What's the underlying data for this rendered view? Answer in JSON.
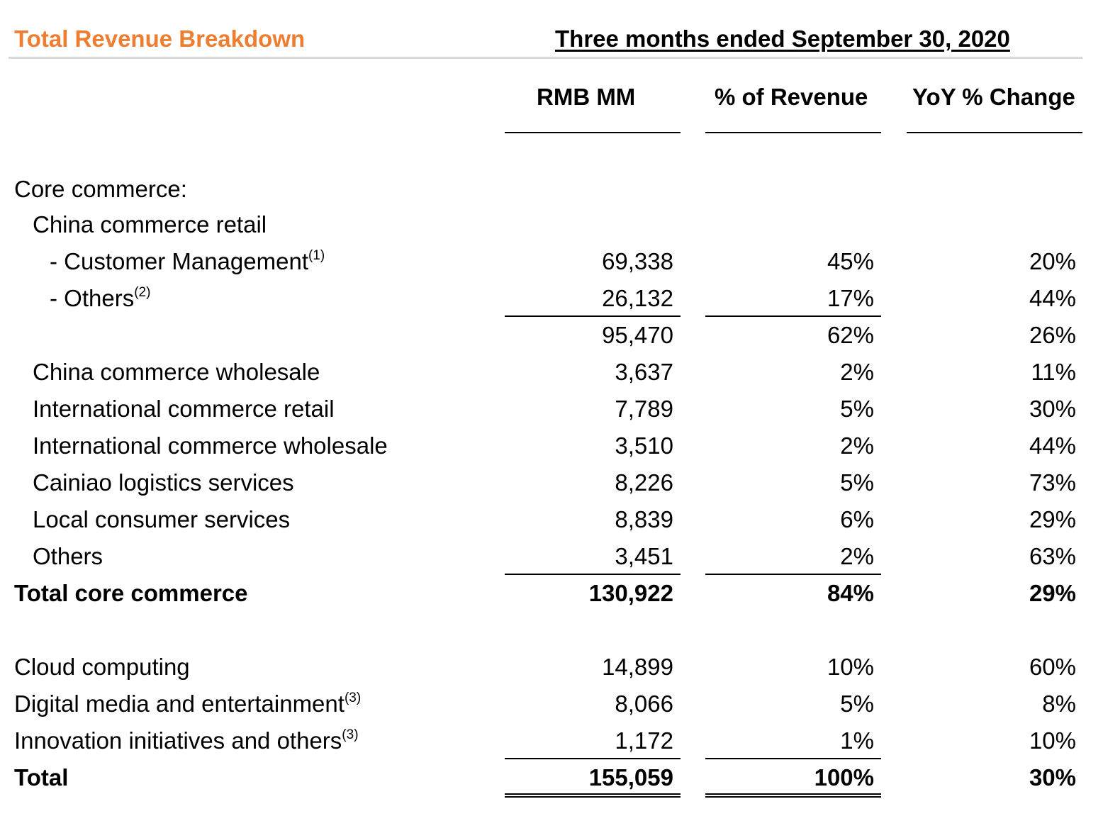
{
  "header": {
    "title": "Total Revenue Breakdown",
    "period": "Three months ended September 30, 2020"
  },
  "columns": {
    "rmb": "RMB MM",
    "pct": "% of Revenue",
    "yoy": "YoY % Change"
  },
  "colors": {
    "title": "#ED7D31"
  },
  "sections": {
    "core_label": "Core commerce:",
    "china_retail_label": "China commerce retail"
  },
  "rows": [
    {
      "label": "- Customer Management",
      "note": "(1)",
      "rmb": "69,338",
      "pct": "45%",
      "yoy": "20%"
    },
    {
      "label": "- Others",
      "note": "(2)",
      "rmb": "26,132",
      "pct": "17%",
      "yoy": "44%"
    },
    {
      "label": "",
      "note": "",
      "rmb": "95,470",
      "pct": "62%",
      "yoy": "26%"
    },
    {
      "label": "China commerce wholesale",
      "note": "",
      "rmb": "3,637",
      "pct": "2%",
      "yoy": "11%"
    },
    {
      "label": "International commerce retail",
      "note": "",
      "rmb": "7,789",
      "pct": "5%",
      "yoy": "30%"
    },
    {
      "label": "International commerce wholesale",
      "note": "",
      "rmb": "3,510",
      "pct": "2%",
      "yoy": "44%"
    },
    {
      "label": "Cainiao logistics services",
      "note": "",
      "rmb": "8,226",
      "pct": "5%",
      "yoy": "73%"
    },
    {
      "label": "Local consumer services",
      "note": "",
      "rmb": "8,839",
      "pct": "6%",
      "yoy": "29%"
    },
    {
      "label": "Others",
      "note": "",
      "rmb": "3,451",
      "pct": "2%",
      "yoy": "63%"
    },
    {
      "label": "Total core commerce",
      "note": "",
      "rmb": "130,922",
      "pct": "84%",
      "yoy": "29%"
    },
    {
      "label": "Cloud computing",
      "note": "",
      "rmb": "14,899",
      "pct": "10%",
      "yoy": "60%"
    },
    {
      "label": "Digital media and entertainment",
      "note": "(3)",
      "rmb": "8,066",
      "pct": "5%",
      "yoy": "8%"
    },
    {
      "label": "Innovation initiatives and others",
      "note": "(3)",
      "rmb": "1,172",
      "pct": "1%",
      "yoy": "10%"
    },
    {
      "label": "Total",
      "note": "",
      "rmb": "155,059",
      "pct": "100%",
      "yoy": "30%"
    }
  ]
}
